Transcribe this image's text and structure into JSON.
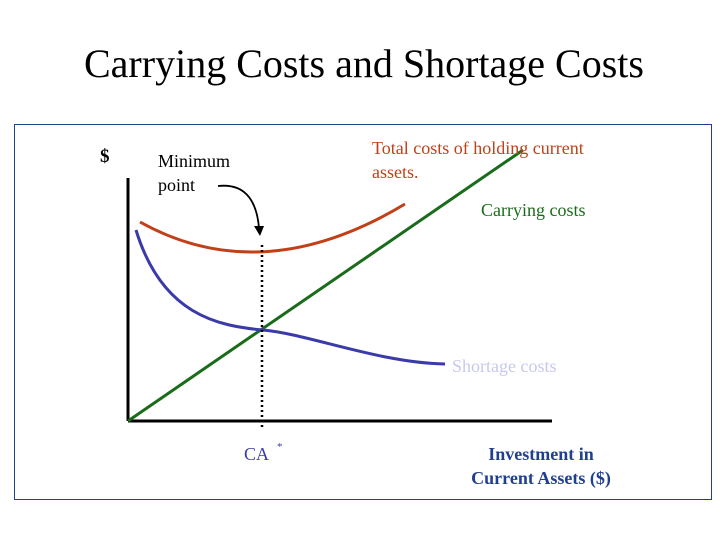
{
  "title": "Carrying Costs and Shortage Costs",
  "diagram": {
    "y_axis_label": "$",
    "x_axis_label_line1": "Investment in",
    "x_axis_label_line2": "Current Assets ($)",
    "optimum_label": "CA",
    "optimum_label_sup": "*",
    "minimum_label_line1": "Minimum",
    "minimum_label_line2": "point",
    "total_label_line1": "Total costs of holding current",
    "total_label_line2": "assets.",
    "carrying_label": "Carrying costs",
    "shortage_label": "Shortage costs",
    "colors": {
      "frame": "#1f3f8f",
      "axes": "#000000",
      "total": "#c0401a",
      "carrying": "#1a6b1a",
      "shortage": "#3a3aa8",
      "shortage_label": "#c8c8ee"
    }
  }
}
